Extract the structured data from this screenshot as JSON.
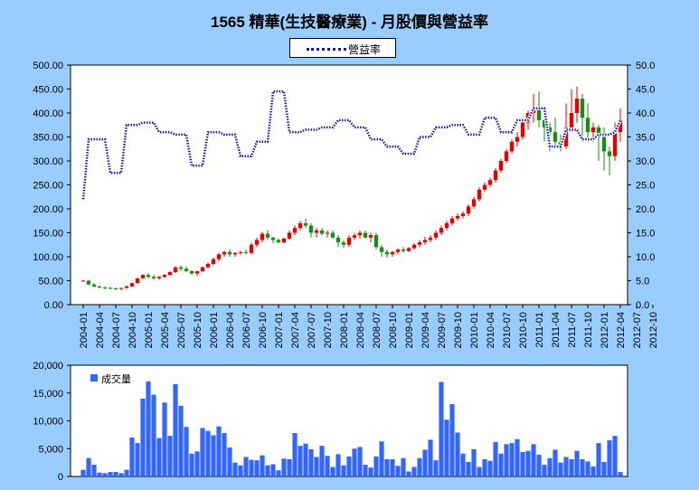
{
  "title": "1565 精華(生技醫療業) - 月股價與營益率",
  "colors": {
    "up": "#e00000",
    "down": "#1a8a1a",
    "ratio_line": "#1a1a99",
    "volume": "#3366ff",
    "background": "#99CCFF",
    "plot": "#ffffff"
  },
  "chart_data": [
    {
      "type": "candlestick+line",
      "title": "1565 精華(生技醫療業) - 月股價與營益率",
      "legend": [
        "營益率"
      ],
      "legend_placement": "top-center",
      "grid": false,
      "y_left": {
        "range": [
          0,
          500
        ],
        "ticks": [
          "0.00",
          "50.00",
          "100.00",
          "150.00",
          "200.00",
          "250.00",
          "300.00",
          "350.00",
          "400.00",
          "450.00",
          "500.00"
        ]
      },
      "y_right": {
        "range": [
          0,
          50
        ],
        "ticks": [
          "0.0",
          "5.0",
          "10.0",
          "15.0",
          "20.0",
          "25.0",
          "30.0",
          "35.0",
          "40.0",
          "45.0",
          "50.0"
        ]
      },
      "x_ticks": [
        "2004-01",
        "2004-04",
        "2004-07",
        "2004-10",
        "2005-01",
        "2005-04",
        "2005-07",
        "2005-10",
        "2006-01",
        "2006-04",
        "2006-07",
        "2006-10",
        "2007-01",
        "2007-04",
        "2007-07",
        "2007-10",
        "2008-01",
        "2008-04",
        "2008-07",
        "2008-10",
        "2009-01",
        "2009-04",
        "2009-07",
        "2009-10",
        "2010-01",
        "2010-04",
        "2010-07",
        "2010-10",
        "2011-01",
        "2011-04",
        "2011-07",
        "2011-10",
        "2012-01",
        "2012-04",
        "2012-07",
        "2012-10"
      ],
      "candle_series": {
        "name": "月股價",
        "months": [
          "2004-01",
          "2004-02",
          "2004-03",
          "2004-04",
          "2004-05",
          "2004-06",
          "2004-07",
          "2004-08",
          "2004-09",
          "2004-10",
          "2004-11",
          "2004-12",
          "2005-01",
          "2005-02",
          "2005-03",
          "2005-04",
          "2005-05",
          "2005-06",
          "2005-07",
          "2005-08",
          "2005-09",
          "2005-10",
          "2005-11",
          "2005-12",
          "2006-01",
          "2006-02",
          "2006-03",
          "2006-04",
          "2006-05",
          "2006-06",
          "2006-07",
          "2006-08",
          "2006-09",
          "2006-10",
          "2006-11",
          "2006-12",
          "2007-01",
          "2007-02",
          "2007-03",
          "2007-04",
          "2007-05",
          "2007-06",
          "2007-07",
          "2007-08",
          "2007-09",
          "2007-10",
          "2007-11",
          "2007-12",
          "2008-01",
          "2008-02",
          "2008-03",
          "2008-04",
          "2008-05",
          "2008-06",
          "2008-07",
          "2008-08",
          "2008-09",
          "2008-10",
          "2008-11",
          "2008-12",
          "2009-01",
          "2009-02",
          "2009-03",
          "2009-04",
          "2009-05",
          "2009-06",
          "2009-07",
          "2009-08",
          "2009-09",
          "2009-10",
          "2009-11",
          "2009-12",
          "2010-01",
          "2010-02",
          "2010-03",
          "2010-04",
          "2010-05",
          "2010-06",
          "2010-07",
          "2010-08",
          "2010-09",
          "2010-10",
          "2010-11",
          "2010-12",
          "2011-01",
          "2011-02",
          "2011-03",
          "2011-04",
          "2011-05",
          "2011-06",
          "2011-07",
          "2011-08",
          "2011-09",
          "2011-10",
          "2011-11",
          "2011-12",
          "2012-01",
          "2012-02",
          "2012-03",
          "2012-04"
        ],
        "open": [
          50,
          50,
          42,
          38,
          36,
          35,
          34,
          33,
          35,
          38,
          45,
          55,
          62,
          58,
          55,
          58,
          62,
          68,
          78,
          75,
          70,
          65,
          70,
          78,
          85,
          95,
          105,
          110,
          105,
          108,
          110,
          108,
          125,
          135,
          148,
          140,
          135,
          130,
          138,
          150,
          160,
          170,
          165,
          150,
          155,
          148,
          150,
          140,
          130,
          125,
          140,
          145,
          150,
          140,
          145,
          120,
          110,
          105,
          110,
          115,
          112,
          118,
          125,
          130,
          135,
          140,
          150,
          160,
          170,
          180,
          185,
          190,
          205,
          220,
          240,
          250,
          260,
          280,
          300,
          320,
          340,
          350,
          380,
          400,
          410,
          385,
          370,
          360,
          340,
          330,
          370,
          400,
          430,
          390,
          360,
          370,
          350,
          320,
          310,
          360
        ],
        "high": [
          52,
          52,
          45,
          40,
          38,
          37,
          36,
          35,
          40,
          46,
          56,
          64,
          66,
          62,
          60,
          64,
          70,
          80,
          82,
          80,
          72,
          70,
          80,
          88,
          98,
          108,
          112,
          116,
          110,
          112,
          115,
          130,
          140,
          152,
          155,
          142,
          138,
          140,
          155,
          165,
          175,
          180,
          170,
          160,
          160,
          155,
          155,
          145,
          135,
          145,
          150,
          155,
          155,
          150,
          150,
          125,
          115,
          112,
          118,
          120,
          120,
          128,
          135,
          142,
          145,
          155,
          165,
          175,
          185,
          190,
          195,
          210,
          225,
          245,
          255,
          265,
          285,
          305,
          325,
          345,
          360,
          385,
          405,
          440,
          445,
          410,
          380,
          390,
          355,
          420,
          450,
          455,
          440,
          420,
          380,
          375,
          370,
          330,
          380,
          410
        ],
        "low": [
          48,
          40,
          36,
          34,
          32,
          32,
          31,
          30,
          33,
          37,
          44,
          54,
          55,
          52,
          52,
          56,
          60,
          66,
          70,
          68,
          62,
          60,
          68,
          76,
          82,
          90,
          100,
          100,
          100,
          104,
          105,
          105,
          120,
          130,
          135,
          128,
          128,
          128,
          135,
          145,
          155,
          160,
          140,
          140,
          145,
          140,
          138,
          120,
          118,
          120,
          135,
          138,
          138,
          130,
          115,
          100,
          98,
          100,
          105,
          108,
          110,
          115,
          120,
          125,
          130,
          135,
          145,
          155,
          165,
          175,
          180,
          185,
          200,
          215,
          235,
          245,
          255,
          275,
          295,
          315,
          330,
          345,
          365,
          380,
          370,
          340,
          320,
          330,
          320,
          325,
          360,
          380,
          340,
          340,
          340,
          300,
          280,
          270,
          300,
          340
        ],
        "close": [
          50,
          42,
          38,
          36,
          35,
          34,
          33,
          35,
          38,
          45,
          55,
          62,
          58,
          55,
          58,
          62,
          68,
          78,
          75,
          70,
          65,
          70,
          78,
          85,
          95,
          105,
          110,
          105,
          108,
          110,
          108,
          125,
          135,
          148,
          140,
          135,
          130,
          138,
          150,
          160,
          170,
          165,
          150,
          155,
          148,
          150,
          140,
          130,
          125,
          140,
          145,
          150,
          140,
          145,
          120,
          110,
          105,
          110,
          115,
          112,
          118,
          125,
          130,
          135,
          140,
          150,
          160,
          170,
          180,
          185,
          190,
          205,
          220,
          240,
          250,
          260,
          280,
          300,
          320,
          340,
          350,
          380,
          400,
          410,
          385,
          370,
          360,
          340,
          330,
          370,
          400,
          430,
          390,
          360,
          370,
          350,
          320,
          310,
          360,
          385
        ]
      },
      "line_series": {
        "name": "營益率",
        "axis": "right",
        "values": [
          22,
          34.5,
          34.5,
          34.5,
          34.5,
          27.5,
          27.5,
          27.5,
          37.5,
          37.5,
          37.5,
          38,
          38,
          38,
          36,
          36,
          36,
          35.5,
          35.5,
          35.5,
          29,
          29,
          29,
          36,
          36,
          36,
          35.5,
          35.5,
          35.5,
          31,
          31,
          31,
          34,
          34,
          34,
          44.5,
          44.5,
          44.5,
          36,
          36,
          36,
          36.5,
          36.5,
          36.5,
          37,
          37,
          37,
          38.5,
          38.5,
          38.5,
          37,
          37,
          37,
          34.5,
          34.5,
          34.5,
          33,
          33,
          33,
          31.5,
          31.5,
          31.5,
          35,
          35,
          35,
          37,
          37,
          37,
          37.5,
          37.5,
          37.5,
          35.5,
          35.5,
          35.5,
          39,
          39,
          39,
          36,
          36,
          36,
          38.5,
          38.5,
          38.5,
          41,
          41,
          41,
          33,
          33,
          33,
          36.5,
          36.5,
          36.5,
          34.5,
          34.5,
          34.5,
          35.5,
          35.5,
          35.5,
          36,
          38.5
        ]
      }
    },
    {
      "type": "bar",
      "legend": [
        "成交量"
      ],
      "legend_placement": "top-left",
      "y_ticks": [
        "0",
        "5,000",
        "10,000",
        "15,000",
        "20,000"
      ],
      "ylim": [
        0,
        20000
      ],
      "series": [
        {
          "name": "成交量",
          "values": [
            1200,
            3300,
            2100,
            700,
            600,
            800,
            800,
            600,
            1200,
            7000,
            6000,
            14000,
            17100,
            14700,
            6900,
            13300,
            7300,
            16600,
            12700,
            8900,
            4100,
            4500,
            8700,
            8200,
            7400,
            9000,
            7800,
            5200,
            2500,
            2000,
            3500,
            3000,
            2900,
            3800,
            2000,
            2200,
            1100,
            3200,
            3100,
            7800,
            5500,
            5900,
            4900,
            3500,
            5500,
            3700,
            1700,
            4000,
            2000,
            3600,
            5000,
            5300,
            2100,
            1600,
            3600,
            6300,
            3100,
            3100,
            1900,
            3300,
            900,
            1700,
            3300,
            4800,
            6600,
            2900,
            17000,
            10200,
            13000,
            7900,
            4100,
            2600,
            4900,
            1700,
            3100,
            2800,
            6200,
            4100,
            5800,
            6000,
            6700,
            4400,
            4600,
            5800,
            3900,
            2100,
            3300,
            4800,
            2500,
            3500,
            3100,
            4600,
            3100,
            2700,
            1800,
            6000,
            2600,
            6500,
            7300,
            800
          ]
        }
      ]
    }
  ]
}
